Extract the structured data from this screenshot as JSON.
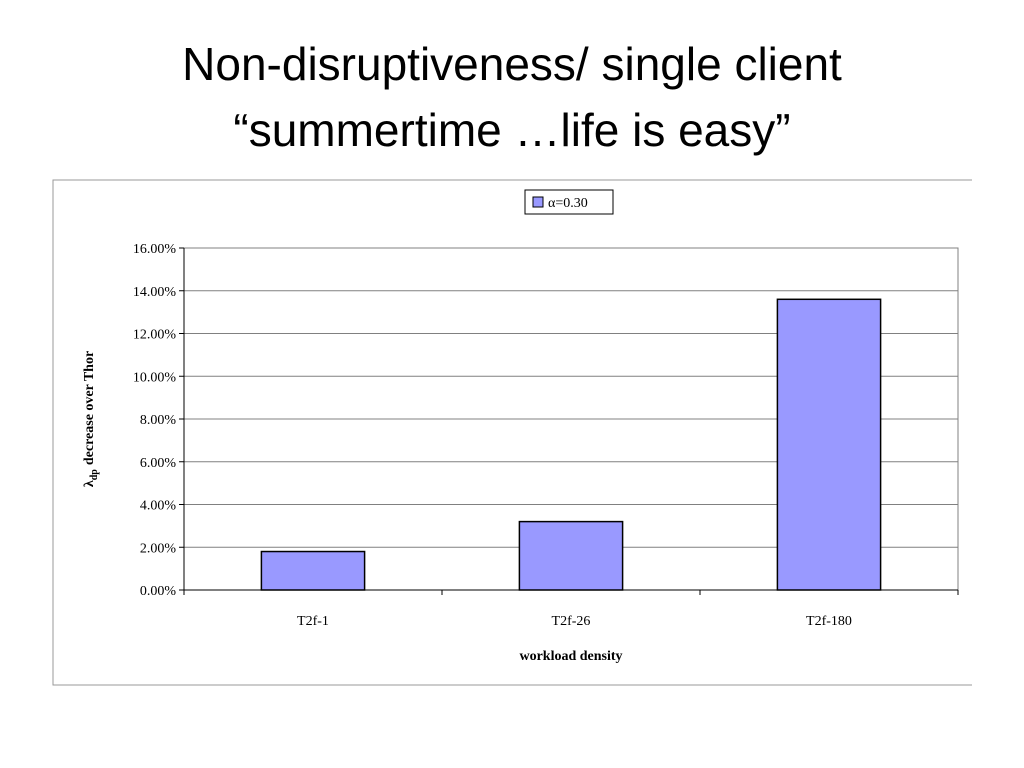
{
  "slide": {
    "title_lines": [
      "Non-disruptiveness/ single client",
      "“summertime …life is easy”"
    ]
  },
  "chart_data": {
    "type": "bar",
    "categories": [
      "T2f-1",
      "T2f-26",
      "T2f-180"
    ],
    "series": [
      {
        "name": "α=0.30",
        "color": "#9999ff",
        "values": [
          1.8,
          3.2,
          13.6
        ]
      }
    ],
    "xlabel": "workload density",
    "ylabel": {
      "symbol": "λ",
      "subscript": "dp",
      "text": "decrease over Thor"
    },
    "ylim": [
      0,
      16
    ],
    "yticks": [
      {
        "value": 0,
        "label": "0.00%"
      },
      {
        "value": 2,
        "label": "2.00%"
      },
      {
        "value": 4,
        "label": "4.00%"
      },
      {
        "value": 6,
        "label": "6.00%"
      },
      {
        "value": 8,
        "label": "8.00%"
      },
      {
        "value": 10,
        "label": "10.00%"
      },
      {
        "value": 12,
        "label": "12.00%"
      },
      {
        "value": 14,
        "label": "14.00%"
      },
      {
        "value": 16,
        "label": "16.00%"
      }
    ],
    "grid": true,
    "legend": "top"
  }
}
